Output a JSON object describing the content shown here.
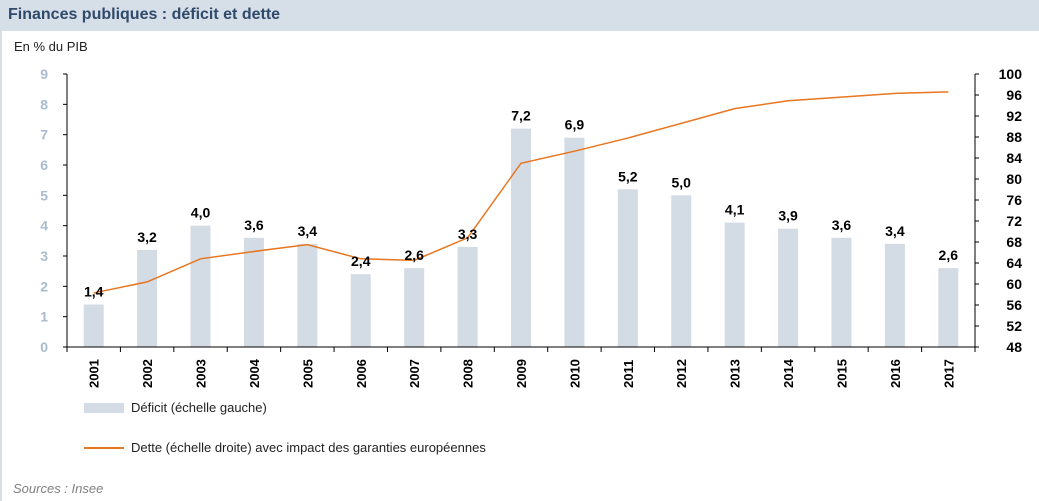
{
  "header": {
    "title": "Finances publiques : déficit et dette",
    "unit": "En % du PIB"
  },
  "legend": {
    "bar_label": "Déficit (échelle gauche)",
    "line_label": "Dette (échelle droite) avec impact des garanties européennes"
  },
  "source": "Sources : Insee",
  "colors": {
    "bar": "#d3dbe4",
    "line": "#e8761f",
    "title_bg": "#d6dee7",
    "title_text": "#2f4a6a",
    "left_ticks": "#a9bccf"
  },
  "chart_data": {
    "type": "bar",
    "categories": [
      "2001",
      "2002",
      "2003",
      "2004",
      "2005",
      "2006",
      "2007",
      "2008",
      "2009",
      "2010",
      "2011",
      "2012",
      "2013",
      "2014",
      "2015",
      "2016",
      "2017"
    ],
    "series": [
      {
        "name": "Déficit (échelle gauche)",
        "type": "bar",
        "axis": "left",
        "values": [
          1.4,
          3.2,
          4.0,
          3.6,
          3.4,
          2.4,
          2.6,
          3.3,
          7.2,
          6.9,
          5.2,
          5.0,
          4.1,
          3.9,
          3.6,
          3.4,
          2.6
        ],
        "labels": [
          "1,4",
          "3,2",
          "4,0",
          "3,6",
          "3,4",
          "2,4",
          "2,6",
          "3,3",
          "7,2",
          "6,9",
          "5,2",
          "5,0",
          "4,1",
          "3,9",
          "3,6",
          "3,4",
          "2,6"
        ]
      },
      {
        "name": "Dette (échelle droite) avec impact des garanties européennes",
        "type": "line",
        "axis": "right",
        "values": [
          58.3,
          60.4,
          64.8,
          66.2,
          67.5,
          64.8,
          64.5,
          68.8,
          83.0,
          85.3,
          87.8,
          90.6,
          93.4,
          94.9,
          95.6,
          96.3,
          96.6
        ]
      }
    ],
    "y_left": {
      "lim": [
        0,
        9
      ],
      "ticks": [
        "0",
        "1",
        "2",
        "3",
        "4",
        "5",
        "6",
        "7",
        "8",
        "9"
      ]
    },
    "y_right": {
      "lim": [
        48,
        100
      ],
      "ticks": [
        "48",
        "52",
        "56",
        "60",
        "64",
        "68",
        "72",
        "76",
        "80",
        "84",
        "88",
        "92",
        "96",
        "100"
      ]
    },
    "grid": false,
    "legend_position": "bottom-left"
  }
}
